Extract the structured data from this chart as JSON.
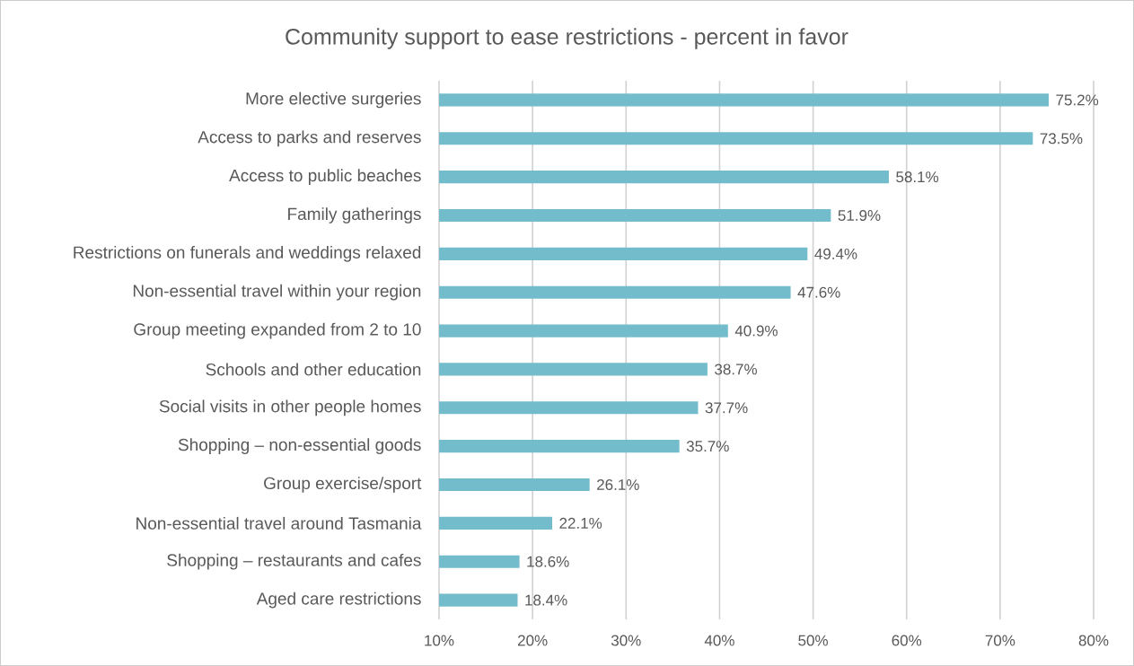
{
  "chart_data": {
    "type": "bar",
    "orientation": "horizontal",
    "title": "Community support to ease restrictions - percent in favor",
    "categories": [
      "More elective surgeries",
      "Access to parks and reserves",
      "Access to public beaches",
      "Family gatherings",
      "Restrictions on funerals and weddings relaxed",
      "Non-essential travel within your region",
      "Group meeting expanded from 2 to 10",
      "Schools and other education",
      "Social visits in other people homes",
      "Shopping – non-essential goods",
      "Group exercise/sport",
      "Non-essential travel around Tasmania",
      "Shopping – restaurants and cafes",
      "Aged care restrictions"
    ],
    "values": [
      75.2,
      73.5,
      58.1,
      51.9,
      49.4,
      47.6,
      40.9,
      38.7,
      37.7,
      35.7,
      26.1,
      22.1,
      18.6,
      18.4
    ],
    "value_labels": [
      "75.2%",
      "73.5%",
      "58.1%",
      "51.9%",
      "49.4%",
      "47.6%",
      "40.9%",
      "38.7%",
      "37.7%",
      "35.7%",
      "26.1%",
      "22.1%",
      "18.6%",
      "18.4%"
    ],
    "color": "#72bccc",
    "xlim": [
      10,
      80
    ],
    "xticks": [
      {
        "value": 10,
        "label": "10%"
      },
      {
        "value": 20,
        "label": "20%"
      },
      {
        "value": 30,
        "label": "30%"
      },
      {
        "value": 40,
        "label": "40%"
      },
      {
        "value": 50,
        "label": "50%"
      },
      {
        "value": 60,
        "label": "60%"
      },
      {
        "value": 70,
        "label": "70%"
      },
      {
        "value": 80,
        "label": "80%"
      }
    ],
    "grid": "x"
  }
}
